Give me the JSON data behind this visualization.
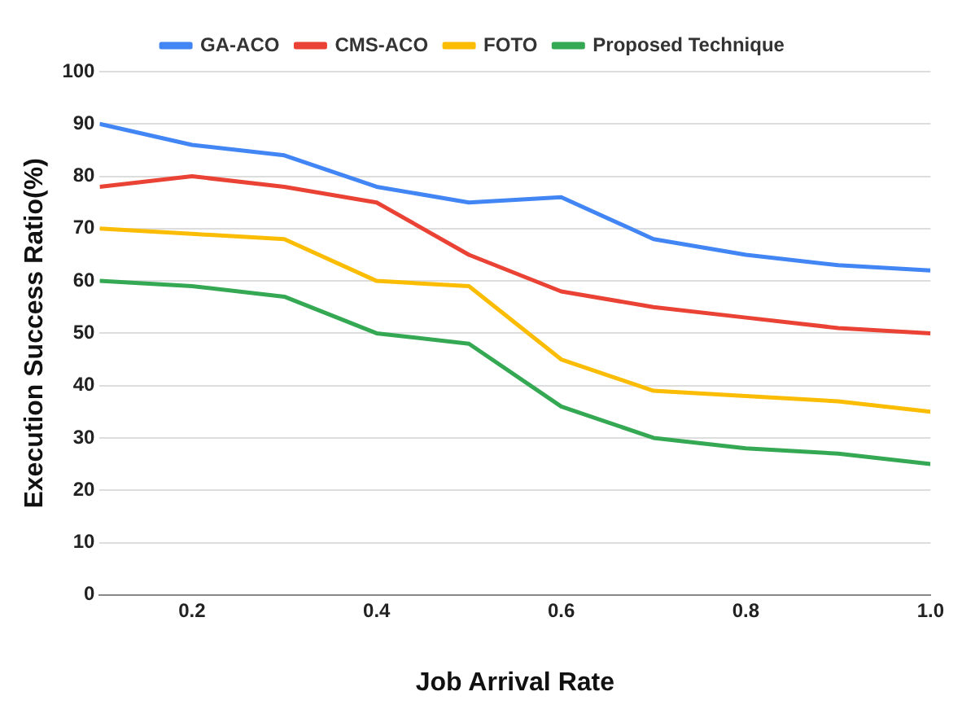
{
  "chart_data": {
    "type": "line",
    "xlabel": "Job Arrival Rate",
    "ylabel": "Execution Success Ratio(%)",
    "x": [
      0.1,
      0.2,
      0.3,
      0.4,
      0.5,
      0.6,
      0.7,
      0.8,
      0.9,
      1.0
    ],
    "series": [
      {
        "name": "GA-ACO",
        "color": "#4285f4",
        "values": [
          90,
          86,
          84,
          78,
          75,
          76,
          68,
          65,
          63,
          62
        ]
      },
      {
        "name": "CMS-ACO",
        "color": "#ea4335",
        "values": [
          78,
          80,
          78,
          75,
          65,
          58,
          55,
          53,
          51,
          50
        ]
      },
      {
        "name": "FOTO",
        "color": "#fbbc04",
        "values": [
          70,
          69,
          68,
          60,
          59,
          45,
          39,
          38,
          37,
          35
        ]
      },
      {
        "name": "Proposed Technique",
        "color": "#34a853",
        "values": [
          60,
          59,
          57,
          50,
          48,
          36,
          30,
          28,
          27,
          25
        ]
      }
    ],
    "xlim": [
      0.1,
      1.0
    ],
    "xticks": [
      0.2,
      0.4,
      0.6,
      0.8,
      {
        "value": 1.0,
        "label": "1.0"
      }
    ],
    "ylim": [
      0,
      100
    ],
    "yticks": [
      0,
      10,
      20,
      30,
      40,
      50,
      60,
      70,
      80,
      90,
      100
    ],
    "grid": "y",
    "legend": "top",
    "marker": "none",
    "line_style": "solid"
  }
}
